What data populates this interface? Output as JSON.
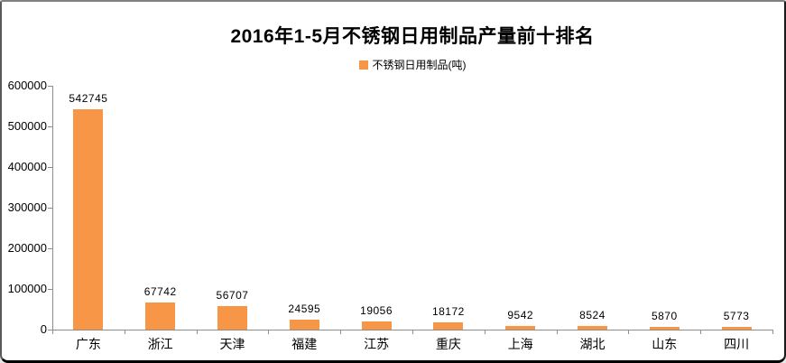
{
  "chart_data": {
    "type": "bar",
    "title": "2016年1-5月不锈钢日用制品产量前十排名",
    "series_name": "不锈钢日用制品(吨)",
    "categories": [
      "广东",
      "浙江",
      "天津",
      "福建",
      "江苏",
      "重庆",
      "上海",
      "湖北",
      "山东",
      "四川"
    ],
    "values": [
      542745,
      67742,
      56707,
      24595,
      19056,
      18172,
      9542,
      8524,
      5870,
      5773
    ],
    "xlabel": "",
    "ylabel": "",
    "ylim": [
      0,
      600000
    ],
    "yticks": [
      0,
      100000,
      200000,
      300000,
      400000,
      500000,
      600000
    ],
    "grid": false,
    "value_labels_shown": true,
    "legend_position": "top",
    "bar_color": "#F79646",
    "axis_color": "#8c8c8c",
    "text_color": "#000000",
    "background_color": "#ffffff"
  }
}
